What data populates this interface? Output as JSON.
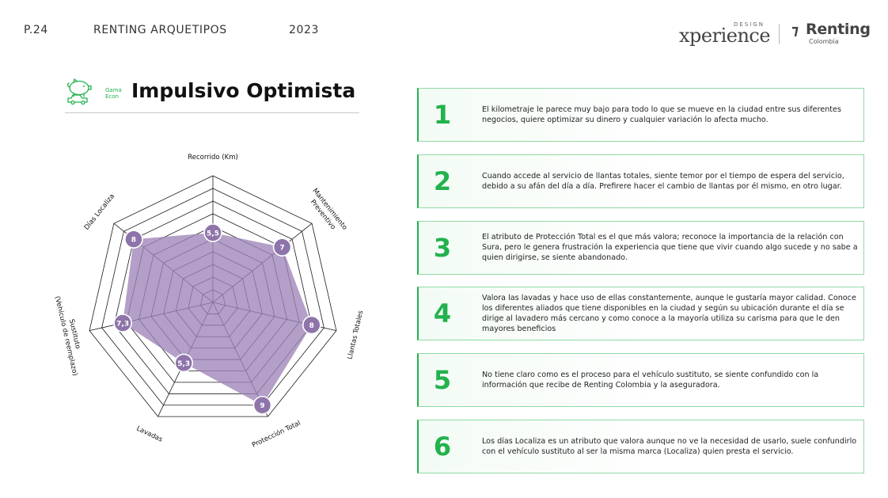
{
  "header": {
    "page": "P.24",
    "document": "RENTING ARQUETIPOS",
    "year": "2023",
    "logo_design": "DESIGN",
    "logo_xperience": "xperience",
    "logo_renting": "Renting",
    "logo_renting_sub": "Colombia"
  },
  "title_block": {
    "gama_line1": "Gama",
    "gama_line2": "Econ",
    "title": "Impulsivo Optimista"
  },
  "colors": {
    "accent_green": "#22b24c",
    "radar_fill": "#9d84b7",
    "radar_point": "#8e74aa",
    "grid": "#1a1a1a"
  },
  "chart_data": {
    "type": "radar",
    "axes": [
      "Recorrido (Km)",
      "Mantenimiento Preventivo",
      "Llantas Totales",
      "Protección Total",
      "Lavadas",
      "Sustituto (Vehículo de reemplazo)",
      "Días Localiza"
    ],
    "value_labels": [
      "5,5",
      "7",
      "8",
      "9",
      "5,3",
      "7,3",
      "8"
    ],
    "values": [
      5.5,
      7,
      8,
      9,
      5.3,
      7.3,
      8
    ],
    "range": [
      0,
      10
    ],
    "rings": 10,
    "grid": true
  },
  "items": [
    {
      "number": "1",
      "text": "El kilometraje le parece muy bajo para todo lo que se mueve en la ciudad entre sus diferentes negocios, quiere optimizar su dinero y cualquier variación lo afecta mucho."
    },
    {
      "number": "2",
      "text": "Cuando accede al servicio de llantas totales, siente temor por el tiempo de espera del servicio, debido a su afán del día a día. Prefirere hacer el cambio de llantas por él mismo, en otro lugar."
    },
    {
      "number": "3",
      "text": "El atributo de Protección Total es el que más valora; reconoce la importancia de la relación con Sura, pero le genera frustración la experiencia que tiene que vivir cuando algo sucede y no sabe a quien dirigirse, se siente abandonado."
    },
    {
      "number": "4",
      "text": "Valora las lavadas y hace uso de ellas constantemente, aunque le gustaría mayor calidad. Conoce los diferentes aliados que tiene disponibles en la ciudad y según su ubicación durante el día se dirige al lavadero más cercano y como conoce a la mayoría utiliza su carisma para que le den mayores beneficios"
    },
    {
      "number": "5",
      "text": "No tiene claro como es el proceso para el vehículo sustituto, se siente confundido con la información que recibe de Renting Colombia y la aseguradora."
    },
    {
      "number": "6",
      "text": "Los días Localiza es un atributo que valora aunque no ve la necesidad de usarlo, suele confundirlo con el vehículo sustituto al ser la misma marca (Localiza) quien presta el servicio."
    }
  ]
}
